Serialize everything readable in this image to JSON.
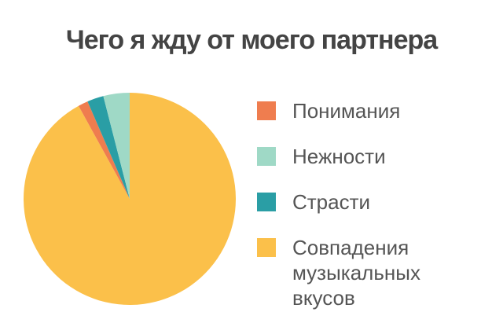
{
  "chart_data": {
    "type": "pie",
    "title": "Чего я жду от моего партнера",
    "categories": [
      "Понимания",
      "Нежности",
      "Страсти",
      "Совпадения музыкальных вкусов"
    ],
    "values": [
      1.5,
      4,
      2.5,
      92
    ],
    "colors": [
      "#ef7d4f",
      "#9fd9c6",
      "#2a9ea5",
      "#fbc04a"
    ]
  }
}
